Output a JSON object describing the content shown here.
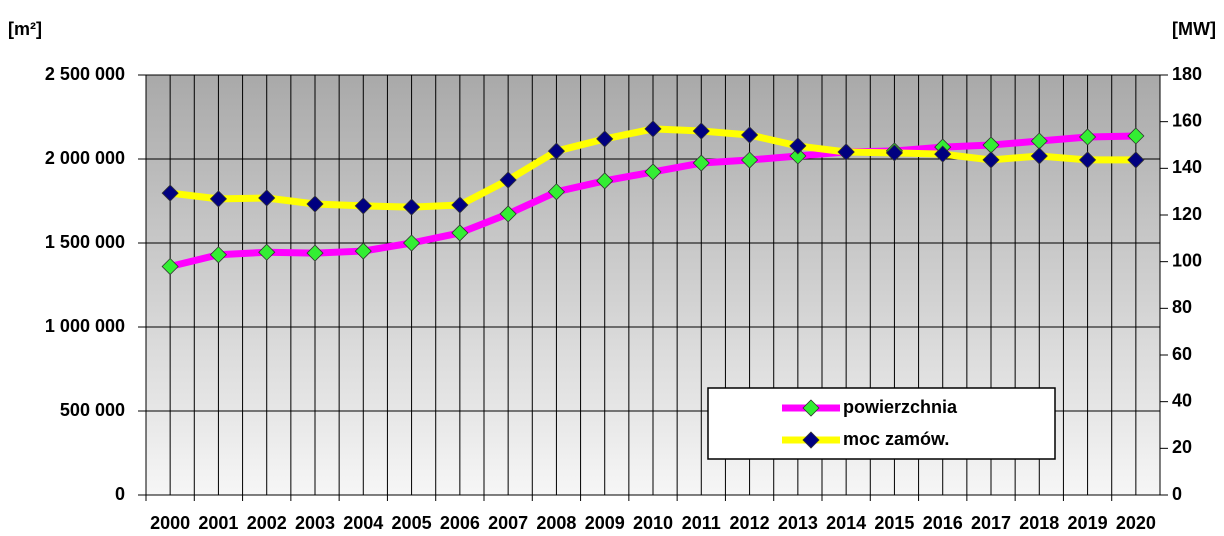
{
  "chart_data": {
    "type": "line",
    "y_label": "[m²]",
    "y2_label": "[MW]",
    "categories": [
      "2000",
      "2001",
      "2002",
      "2003",
      "2004",
      "2005",
      "2006",
      "2007",
      "2008",
      "2009",
      "2010",
      "2011",
      "2012",
      "2013",
      "2014",
      "2015",
      "2016",
      "2017",
      "2018",
      "2019",
      "2020"
    ],
    "series": [
      {
        "name": "powierzchnia",
        "color": "#ff00ff",
        "marker_color": "#33ee33",
        "values": [
          1360000,
          1430000,
          1445000,
          1440000,
          1452000,
          1500000,
          1560000,
          1673000,
          1805000,
          1870000,
          1923000,
          1976000,
          1994000,
          2018000,
          2042000,
          2048000,
          2071000,
          2083000,
          2107000,
          2131000,
          2137000
        ]
      },
      {
        "name": "moc zamów.",
        "color": "#ffff00",
        "marker_color": "#000080",
        "axis": "y2",
        "values": [
          129.4,
          126.9,
          127.3,
          124.7,
          123.9,
          123.4,
          124.3,
          135,
          147.4,
          152.6,
          156.9,
          156,
          154.3,
          149.6,
          147,
          146.6,
          146.1,
          143.6,
          145.3,
          143.6,
          143.6
        ]
      }
    ],
    "ylim": [
      0,
      2500000
    ],
    "yticks": [
      0,
      {
        "value": 500000,
        "label": "500 000"
      },
      {
        "value": 1000000,
        "label": "1 000 000"
      },
      {
        "value": 1500000,
        "label": "1 500 000"
      },
      {
        "value": 2000000,
        "label": "2 000 000"
      },
      {
        "value": 2500000,
        "label": "2 500 000"
      }
    ],
    "y2lim": [
      0,
      180
    ],
    "y2ticks": [
      0,
      20,
      40,
      60,
      80,
      100,
      120,
      140,
      160,
      180
    ],
    "grid": true,
    "legend": "lower right"
  }
}
